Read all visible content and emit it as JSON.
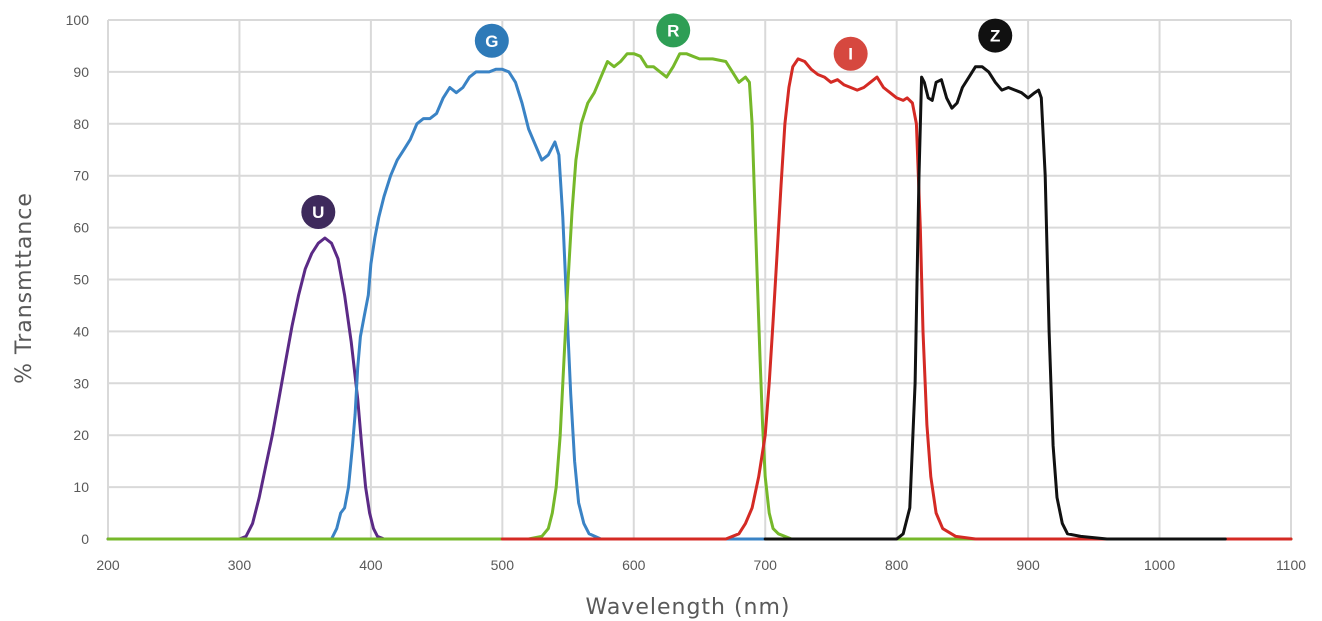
{
  "chart_data": {
    "type": "line",
    "title": "",
    "xlabel": "Wavelength (nm)",
    "ylabel": "% Transmttance",
    "xlim": [
      200,
      1100
    ],
    "ylim": [
      0,
      100
    ],
    "xticks": [
      200,
      300,
      400,
      500,
      600,
      700,
      800,
      900,
      1000,
      1100
    ],
    "yticks": [
      0,
      10,
      20,
      30,
      40,
      50,
      60,
      70,
      80,
      90,
      100
    ],
    "grid": true,
    "series": [
      {
        "name": "U",
        "color": "#5b2a86",
        "badge_color": "#3e2a5c",
        "label_at": [
          360,
          63
        ],
        "points": [
          [
            200,
            0
          ],
          [
            300,
            0
          ],
          [
            305,
            0.5
          ],
          [
            310,
            3
          ],
          [
            315,
            8
          ],
          [
            320,
            14
          ],
          [
            325,
            20
          ],
          [
            330,
            27
          ],
          [
            335,
            34
          ],
          [
            340,
            41
          ],
          [
            345,
            47
          ],
          [
            350,
            52
          ],
          [
            355,
            55
          ],
          [
            360,
            57
          ],
          [
            365,
            58
          ],
          [
            370,
            57
          ],
          [
            375,
            54
          ],
          [
            380,
            47
          ],
          [
            385,
            38
          ],
          [
            390,
            27
          ],
          [
            393,
            18
          ],
          [
            396,
            10
          ],
          [
            399,
            5
          ],
          [
            402,
            2
          ],
          [
            405,
            0.5
          ],
          [
            410,
            0
          ],
          [
            500,
            0
          ]
        ]
      },
      {
        "name": "G",
        "color": "#3a83c5",
        "badge_color": "#2e7ab8",
        "label_at": [
          492,
          96
        ],
        "points": [
          [
            320,
            0
          ],
          [
            370,
            0
          ],
          [
            374,
            2
          ],
          [
            377,
            5
          ],
          [
            380,
            6
          ],
          [
            383,
            10
          ],
          [
            386,
            18
          ],
          [
            388,
            24
          ],
          [
            390,
            33
          ],
          [
            392,
            39
          ],
          [
            395,
            43
          ],
          [
            398,
            47
          ],
          [
            400,
            53
          ],
          [
            403,
            58
          ],
          [
            406,
            62
          ],
          [
            410,
            66
          ],
          [
            415,
            70
          ],
          [
            420,
            73
          ],
          [
            425,
            75
          ],
          [
            430,
            77
          ],
          [
            435,
            80
          ],
          [
            440,
            81
          ],
          [
            445,
            81
          ],
          [
            450,
            82
          ],
          [
            455,
            85
          ],
          [
            460,
            87
          ],
          [
            465,
            86
          ],
          [
            470,
            87
          ],
          [
            475,
            89
          ],
          [
            480,
            90
          ],
          [
            490,
            90
          ],
          [
            495,
            90.5
          ],
          [
            500,
            90.5
          ],
          [
            505,
            90
          ],
          [
            510,
            88
          ],
          [
            515,
            84
          ],
          [
            520,
            79
          ],
          [
            525,
            76
          ],
          [
            530,
            73
          ],
          [
            535,
            74
          ],
          [
            540,
            76.5
          ],
          [
            543,
            74
          ],
          [
            546,
            62
          ],
          [
            549,
            45
          ],
          [
            552,
            28
          ],
          [
            555,
            15
          ],
          [
            558,
            7
          ],
          [
            562,
            3
          ],
          [
            566,
            1
          ],
          [
            575,
            0
          ],
          [
            700,
            0
          ]
        ]
      },
      {
        "name": "R",
        "color": "#76b82a",
        "badge_color": "#2e9e55",
        "label_at": [
          630,
          98
        ],
        "points": [
          [
            200,
            0
          ],
          [
            520,
            0
          ],
          [
            530,
            0.5
          ],
          [
            535,
            2
          ],
          [
            538,
            5
          ],
          [
            541,
            10
          ],
          [
            544,
            20
          ],
          [
            547,
            35
          ],
          [
            550,
            50
          ],
          [
            553,
            63
          ],
          [
            556,
            73
          ],
          [
            560,
            80
          ],
          [
            565,
            84
          ],
          [
            570,
            86
          ],
          [
            575,
            89
          ],
          [
            580,
            92
          ],
          [
            585,
            91
          ],
          [
            590,
            92
          ],
          [
            595,
            93.5
          ],
          [
            600,
            93.5
          ],
          [
            605,
            93
          ],
          [
            610,
            91
          ],
          [
            615,
            91
          ],
          [
            620,
            90
          ],
          [
            625,
            89
          ],
          [
            630,
            91
          ],
          [
            635,
            93.5
          ],
          [
            640,
            93.5
          ],
          [
            645,
            93
          ],
          [
            650,
            92.5
          ],
          [
            660,
            92.5
          ],
          [
            670,
            92
          ],
          [
            675,
            90
          ],
          [
            680,
            88
          ],
          [
            685,
            89
          ],
          [
            688,
            88
          ],
          [
            690,
            80
          ],
          [
            692,
            65
          ],
          [
            694,
            50
          ],
          [
            696,
            35
          ],
          [
            698,
            22
          ],
          [
            700,
            12
          ],
          [
            703,
            5
          ],
          [
            706,
            2
          ],
          [
            710,
            1
          ],
          [
            720,
            0
          ],
          [
            1100,
            0
          ]
        ]
      },
      {
        "name": "I",
        "color": "#d42a24",
        "badge_color": "#d6483f",
        "label_at": [
          765,
          93.5
        ],
        "points": [
          [
            500,
            0
          ],
          [
            670,
            0
          ],
          [
            680,
            1
          ],
          [
            685,
            3
          ],
          [
            690,
            6
          ],
          [
            695,
            12
          ],
          [
            700,
            20
          ],
          [
            703,
            30
          ],
          [
            706,
            42
          ],
          [
            709,
            55
          ],
          [
            712,
            68
          ],
          [
            715,
            80
          ],
          [
            718,
            87
          ],
          [
            721,
            91
          ],
          [
            725,
            92.5
          ],
          [
            730,
            92
          ],
          [
            735,
            90.5
          ],
          [
            740,
            89.5
          ],
          [
            745,
            89
          ],
          [
            750,
            88
          ],
          [
            755,
            88.5
          ],
          [
            760,
            87.5
          ],
          [
            765,
            87
          ],
          [
            770,
            86.5
          ],
          [
            775,
            87
          ],
          [
            780,
            88
          ],
          [
            785,
            89
          ],
          [
            790,
            87
          ],
          [
            795,
            86
          ],
          [
            800,
            85
          ],
          [
            805,
            84.5
          ],
          [
            808,
            85
          ],
          [
            812,
            84
          ],
          [
            815,
            80
          ],
          [
            818,
            60
          ],
          [
            820,
            40
          ],
          [
            823,
            22
          ],
          [
            826,
            12
          ],
          [
            830,
            5
          ],
          [
            835,
            2
          ],
          [
            845,
            0.5
          ],
          [
            860,
            0
          ],
          [
            1100,
            0
          ]
        ]
      },
      {
        "name": "Z",
        "color": "#111111",
        "badge_color": "#111111",
        "label_at": [
          875,
          97
        ],
        "points": [
          [
            700,
            0
          ],
          [
            800,
            0
          ],
          [
            805,
            1
          ],
          [
            810,
            6
          ],
          [
            814,
            30
          ],
          [
            817,
            70
          ],
          [
            819,
            89
          ],
          [
            821,
            88
          ],
          [
            824,
            85
          ],
          [
            827,
            84.5
          ],
          [
            830,
            88
          ],
          [
            834,
            88.5
          ],
          [
            838,
            85
          ],
          [
            842,
            83
          ],
          [
            846,
            84
          ],
          [
            850,
            87
          ],
          [
            855,
            89
          ],
          [
            860,
            91
          ],
          [
            865,
            91
          ],
          [
            870,
            90
          ],
          [
            875,
            88
          ],
          [
            880,
            86.5
          ],
          [
            885,
            87
          ],
          [
            890,
            86.5
          ],
          [
            895,
            86
          ],
          [
            900,
            85
          ],
          [
            905,
            86
          ],
          [
            908,
            86.5
          ],
          [
            910,
            85
          ],
          [
            913,
            70
          ],
          [
            916,
            40
          ],
          [
            919,
            18
          ],
          [
            922,
            8
          ],
          [
            926,
            3
          ],
          [
            930,
            1
          ],
          [
            940,
            0.5
          ],
          [
            960,
            0
          ],
          [
            1050,
            0
          ]
        ]
      }
    ]
  }
}
